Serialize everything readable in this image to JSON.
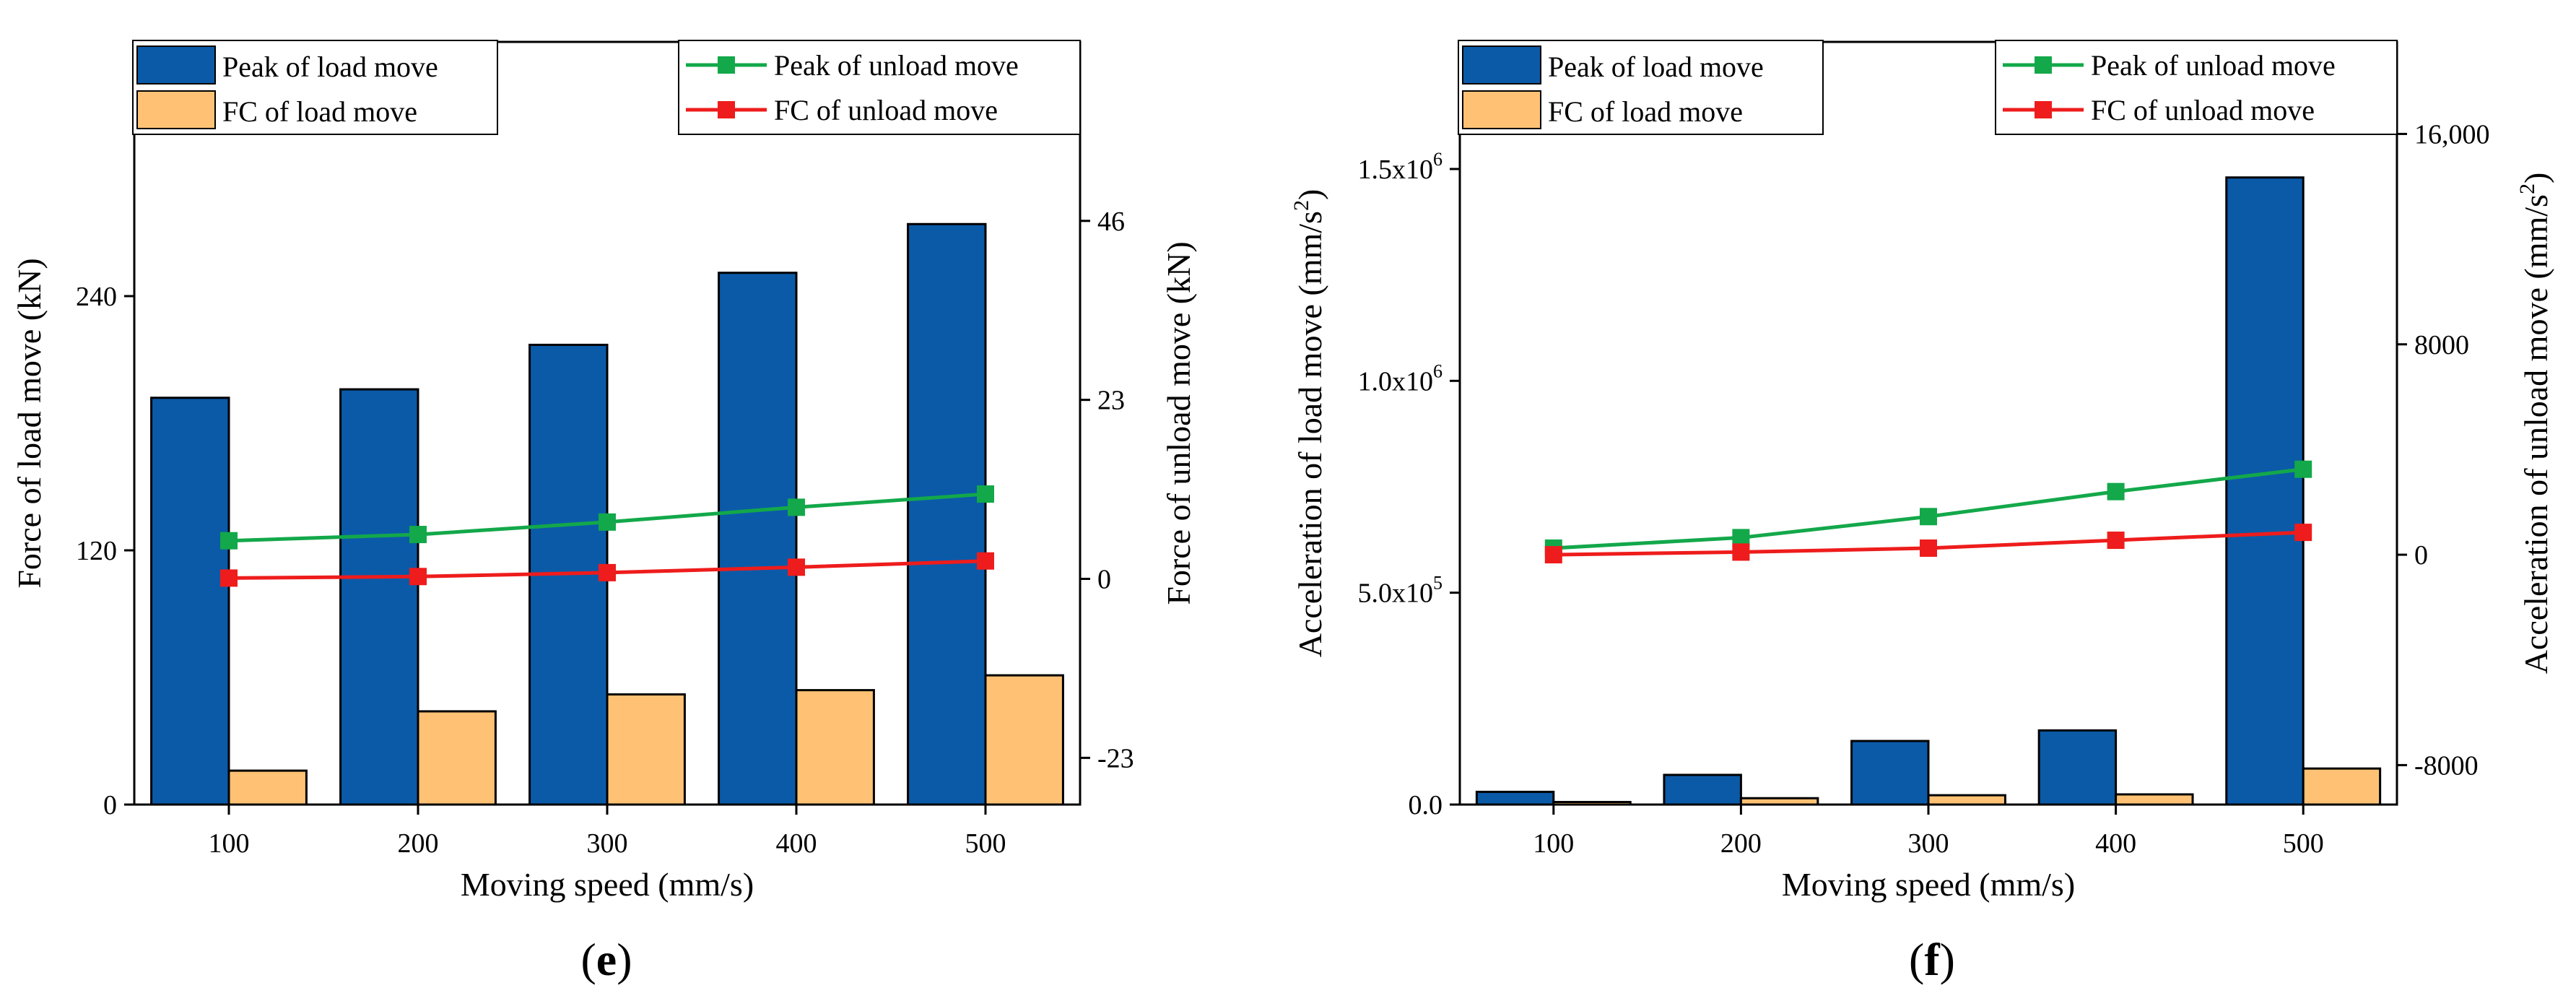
{
  "colors": {
    "load_peak_bar": "#0b5aa8",
    "load_fc_bar": "#ffc274",
    "unload_peak_line": "#13a84a",
    "unload_fc_line": "#ee1c1c",
    "axis": "#000000"
  },
  "chart_data": [
    {
      "type": "bar",
      "panel_label": "e",
      "caption": {
        "open": "(",
        "letter": "e",
        "close": ")"
      },
      "categories": [
        "100",
        "200",
        "300",
        "400",
        "500"
      ],
      "xlabel": "Moving speed (mm/s)",
      "ylabel": "Force of load move (kN)",
      "y2label": "Force of unload move (kN)",
      "ylim": [
        0,
        360
      ],
      "y2lim": [
        -29,
        69
      ],
      "yticks": [
        {
          "value": 0,
          "label": "0"
        },
        {
          "value": 120,
          "label": "120"
        },
        {
          "value": 240,
          "label": "240"
        }
      ],
      "y2ticks": [
        {
          "value": -23,
          "label": "-23"
        },
        {
          "value": 0,
          "label": "0"
        },
        {
          "value": 23,
          "label": "23"
        },
        {
          "value": 46,
          "label": "46"
        }
      ],
      "series": [
        {
          "name": "Peak of load move",
          "axis": "left",
          "kind": "bar",
          "values": [
            192,
            196,
            217,
            251,
            274
          ]
        },
        {
          "name": "FC of load move",
          "axis": "left",
          "kind": "bar",
          "values": [
            16,
            44,
            52,
            54,
            61
          ]
        },
        {
          "name": "Peak of unload move",
          "axis": "right",
          "kind": "line",
          "values": [
            4.9,
            5.7,
            7.3,
            9.2,
            10.9
          ]
        },
        {
          "name": "FC of unload move",
          "axis": "right",
          "kind": "line",
          "values": [
            0.1,
            0.3,
            0.8,
            1.5,
            2.3
          ]
        }
      ],
      "legend": [
        {
          "name": "Peak of load move"
        },
        {
          "name": "FC of load move"
        },
        {
          "name": "Peak of unload move"
        },
        {
          "name": "FC of unload move"
        }
      ]
    },
    {
      "type": "bar",
      "panel_label": "f",
      "caption": {
        "open": "(",
        "letter": "f",
        "close": ")"
      },
      "categories": [
        "100",
        "200",
        "300",
        "400",
        "500"
      ],
      "xlabel": "Moving speed (mm/s)",
      "ylabel": {
        "main": "Acceleration of load move  (mm/s",
        "sup": "2",
        "close": ")"
      },
      "y2label": {
        "main": "Acceleration of unload move (mm/s",
        "sup": "2",
        "close": ")"
      },
      "ylim": [
        0,
        1800000
      ],
      "y2lim": [
        -9500,
        19500
      ],
      "yticks": [
        {
          "value": 0,
          "label": "0.0"
        },
        {
          "value": 500000,
          "label": "5.0x10",
          "sup": "5"
        },
        {
          "value": 1000000,
          "label": "1.0x10",
          "sup": "6"
        },
        {
          "value": 1500000,
          "label": "1.5x10",
          "sup": "6"
        }
      ],
      "y2ticks": [
        {
          "value": -8000,
          "label": "-8000"
        },
        {
          "value": 0,
          "label": "0"
        },
        {
          "value": 8000,
          "label": "8000"
        },
        {
          "value": 16000,
          "label": "16,000"
        }
      ],
      "series": [
        {
          "name": "Peak of load move",
          "axis": "left",
          "kind": "bar",
          "values": [
            30000,
            70000,
            150000,
            175000,
            1480000
          ]
        },
        {
          "name": "FC of load move",
          "axis": "left",
          "kind": "bar",
          "values": [
            6000,
            15000,
            22000,
            24000,
            85000
          ]
        },
        {
          "name": "Peak of unload move",
          "axis": "right",
          "kind": "line",
          "values": [
            250,
            650,
            1450,
            2400,
            3250
          ]
        },
        {
          "name": "FC of unload move",
          "axis": "right",
          "kind": "line",
          "values": [
            0,
            100,
            250,
            550,
            850
          ]
        }
      ],
      "legend": [
        {
          "name": "Peak of load move"
        },
        {
          "name": "FC of load move"
        },
        {
          "name": "Peak of unload move"
        },
        {
          "name": "FC of unload move"
        }
      ]
    }
  ]
}
